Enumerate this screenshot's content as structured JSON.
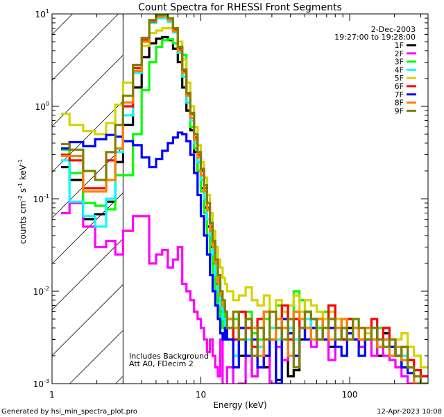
{
  "chart_data": {
    "type": "line",
    "title": "Count Spectra for RHESSI Front Segments",
    "xlabel": "Energy (keV)",
    "ylabel": {
      "base": "counts cm",
      "e1": "-2",
      "mid1": " s",
      "e2": "-1",
      "mid2": " keV",
      "e3": "-1"
    },
    "xscale": "log",
    "yscale": "log",
    "xlim": [
      1,
      336
    ],
    "ylim": [
      0.001,
      10
    ],
    "x_ticks": [
      {
        "value": 1,
        "label": "1"
      },
      {
        "value": 10,
        "label": "10"
      },
      {
        "value": 100,
        "label": "100"
      }
    ],
    "y_ticks": [
      {
        "value": 10,
        "base": "10",
        "exp": "1"
      },
      {
        "value": 1,
        "base": "10",
        "exp": "0"
      },
      {
        "value": 0.1,
        "base": "10",
        "exp": "-1"
      },
      {
        "value": 0.01,
        "base": "10",
        "exp": "-2"
      },
      {
        "value": 0.001,
        "base": "10",
        "exp": "-3"
      }
    ],
    "excluded_region_keV": [
      1,
      3
    ],
    "legend_placement": "top-right",
    "date": "2-Dec-2003",
    "time_range": "19:27:00 to 19:28:00",
    "annotations": [
      "Includes Background",
      "Att A0, FDecim 2"
    ],
    "energy_edges": [
      1.15,
      1.31,
      1.62,
      1.95,
      2.31,
      2.66,
      3.0,
      3.5,
      4,
      4.5,
      5,
      5.5,
      6,
      6.5,
      7,
      7.5,
      8,
      8.5,
      9,
      9.5,
      10,
      10.5,
      11,
      11.5,
      12,
      12.5,
      13,
      13.5,
      14,
      14.5,
      15,
      16.5,
      18,
      20,
      22,
      24,
      26.5,
      29,
      32,
      35,
      38.5,
      42,
      46,
      50,
      55,
      60,
      66,
      72,
      80,
      88,
      96,
      105,
      115,
      127,
      140,
      153,
      168,
      185,
      203,
      223,
      245,
      270,
      300,
      336
    ],
    "series": [
      {
        "name": "1F",
        "color": "#000000",
        "values": [
          0.22,
          0.16,
          0.06,
          0.068,
          0.093,
          0.25,
          0.63,
          1.6,
          3.4,
          4.8,
          5.4,
          5.6,
          5.2,
          4.2,
          3.0,
          1.6,
          0.9,
          0.55,
          0.32,
          0.2,
          0.13,
          0.08,
          0.05,
          0.03,
          0.02,
          0.012,
          0.008,
          0.006,
          0.004,
          0.003,
          0.004,
          0.003,
          0.002,
          0.005,
          0.0012,
          0.004,
          0.0015,
          0.003,
          0.0011,
          0.004,
          0.0012,
          0.0014,
          0.003,
          0.004,
          0.005,
          0.003,
          0.004,
          0.0025,
          0.005,
          0.003,
          0.004,
          0.003,
          0.0025,
          0.004,
          0.003,
          0.002,
          0.0035,
          0.003,
          0.002,
          0.0015,
          0.0018,
          0.001,
          0.0008
        ]
      },
      {
        "name": "2F",
        "color": "#ff00ff",
        "values": [
          0.07,
          0.09,
          0.05,
          0.03,
          0.035,
          0.025,
          0.045,
          0.065,
          0.065,
          0.02,
          0.025,
          0.028,
          0.018,
          0.022,
          0.03,
          0.012,
          0.01,
          0.008,
          0.006,
          0.005,
          0.004,
          0.003,
          0.0022,
          0.003,
          0.002,
          0.0015,
          0.0012,
          0.003,
          0.0008,
          0.0008,
          0.0015,
          0.0008,
          0.001,
          0.002,
          0.0012,
          0.0015,
          0.002,
          0.001,
          0.0025,
          0.0018,
          0.003,
          0.002,
          0.004,
          0.003,
          0.0025,
          0.004,
          0.003,
          0.0018,
          0.004,
          0.003,
          0.0035,
          0.003,
          0.0025,
          0.003,
          0.002,
          0.0025,
          0.002,
          0.0018,
          0.0015,
          0.0012,
          0.001,
          0.0009,
          0.0008
        ]
      },
      {
        "name": "3F",
        "color": "#00ff00",
        "values": [
          0.34,
          0.19,
          0.09,
          0.084,
          0.077,
          0.18,
          0.18,
          0.5,
          1.5,
          3.0,
          4.4,
          5.2,
          5.3,
          4.8,
          4.2,
          3.6,
          1.4,
          0.6,
          0.35,
          0.2,
          0.12,
          0.07,
          0.04,
          0.025,
          0.015,
          0.01,
          0.007,
          0.005,
          0.004,
          0.006,
          0.003,
          0.005,
          0.004,
          0.006,
          0.0035,
          0.003,
          0.005,
          0.004,
          0.007,
          0.006,
          0.005,
          0.01,
          0.008,
          0.006,
          0.005,
          0.004,
          0.006,
          0.005,
          0.004,
          0.003,
          0.005,
          0.004,
          0.003,
          0.004,
          0.003,
          0.004,
          0.003,
          0.0025,
          0.002,
          0.0018,
          0.0015,
          0.0012,
          0.001
        ]
      },
      {
        "name": "4F",
        "color": "#00ffff",
        "values": [
          0.26,
          0.093,
          0.065,
          0.05,
          0.1,
          0.32,
          0.8,
          2.3,
          5.0,
          8.0,
          9.0,
          9.0,
          8.2,
          6.3,
          3.8,
          2.1,
          1.1,
          0.7,
          0.4,
          0.25,
          0.16,
          0.1,
          0.06,
          0.04,
          0.025,
          0.015,
          0.01,
          0.007,
          0.005,
          0.004,
          0.003,
          0.002,
          0.004,
          0.003,
          0.002,
          0.0025,
          0.003,
          0.004,
          0.003,
          0.005,
          0.004,
          0.003,
          0.004,
          0.005,
          0.004,
          0.003,
          0.005,
          0.004,
          0.003,
          0.004,
          0.003,
          0.005,
          0.003,
          0.004,
          0.003,
          0.0025,
          0.003,
          0.002,
          0.0025,
          0.002,
          0.0015,
          0.0012,
          0.001
        ]
      },
      {
        "name": "5F",
        "color": "#d4d400",
        "values": [
          0.83,
          0.63,
          0.54,
          0.5,
          0.66,
          1.04,
          1.8,
          2.8,
          4.5,
          6.2,
          6.6,
          7.0,
          7.0,
          6.5,
          5.0,
          3.2,
          1.8,
          1.0,
          0.6,
          0.38,
          0.25,
          0.17,
          0.11,
          0.07,
          0.045,
          0.03,
          0.022,
          0.018,
          0.014,
          0.012,
          0.01,
          0.008,
          0.009,
          0.011,
          0.008,
          0.007,
          0.009,
          0.006,
          0.008,
          0.006,
          0.007,
          0.009,
          0.006,
          0.008,
          0.007,
          0.006,
          0.005,
          0.006,
          0.005,
          0.004,
          0.005,
          0.004,
          0.004,
          0.0035,
          0.004,
          0.003,
          0.004,
          0.003,
          0.003,
          0.0035,
          0.0025,
          0.002,
          0.0015
        ]
      },
      {
        "name": "6F",
        "color": "#ff0000",
        "values": [
          0.3,
          0.26,
          0.13,
          0.13,
          0.26,
          0.35,
          1.0,
          2.6,
          5.2,
          8.3,
          9.5,
          9.6,
          8.8,
          6.8,
          4.2,
          2.4,
          1.35,
          0.82,
          0.46,
          0.3,
          0.2,
          0.13,
          0.08,
          0.05,
          0.033,
          0.022,
          0.012,
          0.009,
          0.007,
          0.006,
          0.005,
          0.003,
          0.006,
          0.004,
          0.0025,
          0.005,
          0.006,
          0.003,
          0.004,
          0.007,
          0.003,
          0.005,
          0.004,
          0.006,
          0.005,
          0.003,
          0.004,
          0.007,
          0.004,
          0.003,
          0.005,
          0.004,
          0.003,
          0.004,
          0.005,
          0.003,
          0.004,
          0.003,
          0.002,
          0.0025,
          0.0018,
          0.0014,
          0.0012
        ]
      },
      {
        "name": "7F",
        "color": "#0000ff",
        "values": [
          0.35,
          0.41,
          0.37,
          0.44,
          0.49,
          0.47,
          0.42,
          0.38,
          0.28,
          0.22,
          0.27,
          0.33,
          0.4,
          0.46,
          0.52,
          0.5,
          0.42,
          0.3,
          0.19,
          0.11,
          0.065,
          0.04,
          0.025,
          0.015,
          0.01,
          0.007,
          0.005,
          0.0035,
          0.003,
          0.004,
          0.003,
          0.0015,
          0.004,
          0.002,
          0.003,
          0.0015,
          0.002,
          0.003,
          0.001,
          0.005,
          0.0035,
          0.002,
          0.004,
          0.003,
          0.004,
          0.005,
          0.003,
          0.004,
          0.0025,
          0.002,
          0.0035,
          0.003,
          0.002,
          0.003,
          0.004,
          0.0025,
          0.003,
          0.0025,
          0.002,
          0.0015,
          0.0013,
          0.001,
          0.0008
        ]
      },
      {
        "name": "8F",
        "color": "#ff8000",
        "values": [
          0.29,
          0.29,
          0.12,
          0.12,
          0.16,
          0.35,
          1.1,
          2.4,
          5.0,
          8.5,
          9.3,
          9.5,
          8.6,
          6.5,
          4.0,
          2.3,
          1.3,
          0.75,
          0.43,
          0.28,
          0.18,
          0.12,
          0.075,
          0.045,
          0.03,
          0.02,
          0.012,
          0.009,
          0.007,
          0.006,
          0.005,
          0.004,
          0.003,
          0.005,
          0.004,
          0.002,
          0.006,
          0.003,
          0.005,
          0.004,
          0.002,
          0.006,
          0.005,
          0.004,
          0.003,
          0.005,
          0.004,
          0.003,
          0.004,
          0.005,
          0.003,
          0.004,
          0.003,
          0.004,
          0.003,
          0.0025,
          0.003,
          0.002,
          0.0025,
          0.0018,
          0.0015,
          0.001,
          0.0009
        ]
      },
      {
        "name": "9F",
        "color": "#808000",
        "values": [
          0.39,
          0.34,
          0.2,
          0.16,
          0.32,
          0.63,
          1.3,
          2.8,
          5.5,
          8.6,
          9.7,
          9.8,
          9.0,
          7.0,
          4.4,
          2.5,
          1.4,
          0.85,
          0.5,
          0.32,
          0.21,
          0.14,
          0.09,
          0.055,
          0.035,
          0.022,
          0.015,
          0.01,
          0.008,
          0.006,
          0.004,
          0.006,
          0.003,
          0.005,
          0.002,
          0.004,
          0.003,
          0.006,
          0.004,
          0.003,
          0.005,
          0.0015,
          0.004,
          0.006,
          0.005,
          0.003,
          0.004,
          0.005,
          0.003,
          0.004,
          0.003,
          0.005,
          0.004,
          0.003,
          0.004,
          0.003,
          0.0025,
          0.003,
          0.002,
          0.0025,
          0.0015,
          0.0012,
          0.001
        ]
      }
    ]
  },
  "footer": {
    "generated_by": "Generated by hsi_min_spectra_plot.pro",
    "timestamp": "12-Apr-2023 10:08"
  }
}
